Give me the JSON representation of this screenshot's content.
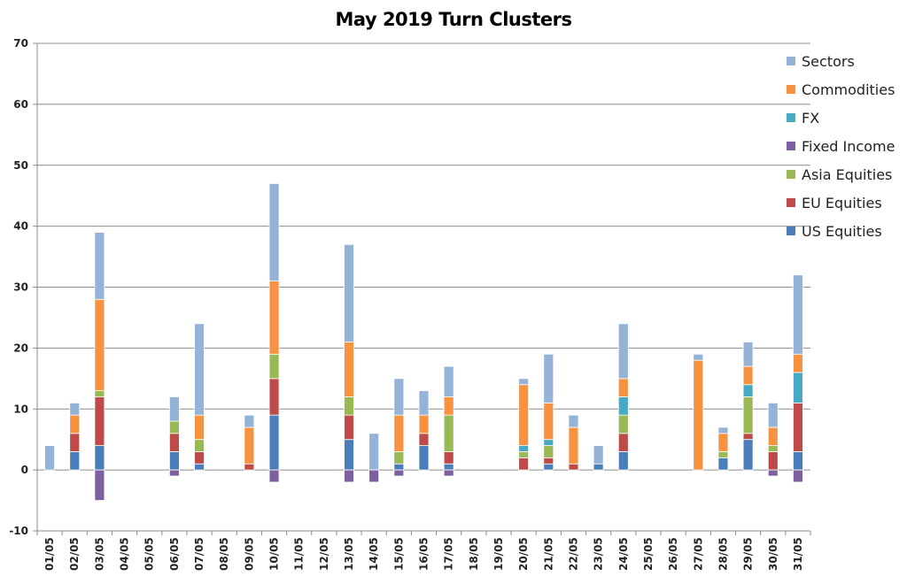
{
  "chart_data": {
    "type": "bar",
    "stacked": true,
    "title": "May 2019 Turn Clusters",
    "xlabel": "",
    "ylabel": "",
    "ylim": [
      -10,
      70
    ],
    "yticks": [
      -10,
      0,
      10,
      20,
      30,
      40,
      50,
      60,
      70
    ],
    "grid": true,
    "legend_position": "right",
    "categories": [
      "01/05",
      "02/05",
      "03/05",
      "04/05",
      "05/05",
      "06/05",
      "07/05",
      "08/05",
      "09/05",
      "10/05",
      "11/05",
      "12/05",
      "13/05",
      "14/05",
      "15/05",
      "16/05",
      "17/05",
      "18/05",
      "19/05",
      "20/05",
      "21/05",
      "22/05",
      "23/05",
      "24/05",
      "25/05",
      "26/05",
      "27/05",
      "28/05",
      "29/05",
      "30/05",
      "31/05"
    ],
    "series": [
      {
        "name": "US Equities",
        "color": "#4A7EBB",
        "values": [
          0,
          3,
          4,
          0,
          0,
          3,
          1,
          0,
          0,
          9,
          0,
          0,
          5,
          0,
          1,
          4,
          1,
          0,
          0,
          0,
          1,
          0,
          1,
          3,
          0,
          0,
          0,
          2,
          5,
          0,
          3
        ]
      },
      {
        "name": "EU Equities",
        "color": "#BE4B48",
        "values": [
          0,
          3,
          8,
          0,
          0,
          3,
          2,
          0,
          1,
          6,
          0,
          0,
          4,
          0,
          0,
          2,
          2,
          0,
          0,
          2,
          1,
          1,
          0,
          3,
          0,
          0,
          0,
          0,
          1,
          3,
          8
        ]
      },
      {
        "name": "Asia Equities",
        "color": "#98B954",
        "values": [
          0,
          0,
          1,
          0,
          0,
          2,
          2,
          0,
          0,
          4,
          0,
          0,
          3,
          0,
          2,
          0,
          6,
          0,
          0,
          1,
          2,
          0,
          0,
          3,
          0,
          0,
          0,
          1,
          6,
          1,
          0
        ]
      },
      {
        "name": "Fixed Income",
        "color": "#7D60A0",
        "values": [
          0,
          0,
          -5,
          0,
          0,
          -1,
          0,
          0,
          0,
          -2,
          0,
          0,
          -2,
          -2,
          -1,
          0,
          -1,
          0,
          0,
          0,
          0,
          0,
          0,
          0,
          0,
          0,
          0,
          0,
          0,
          -1,
          -2
        ]
      },
      {
        "name": "FX",
        "color": "#46AAC5",
        "values": [
          0,
          0,
          0,
          0,
          0,
          0,
          0,
          0,
          0,
          0,
          0,
          0,
          0,
          0,
          0,
          0,
          0,
          0,
          0,
          1,
          1,
          0,
          0,
          3,
          0,
          0,
          0,
          0,
          2,
          0,
          5
        ]
      },
      {
        "name": "Commodities",
        "color": "#F69240",
        "values": [
          0,
          3,
          15,
          0,
          0,
          0,
          4,
          0,
          6,
          12,
          0,
          0,
          9,
          0,
          6,
          3,
          3,
          0,
          0,
          10,
          6,
          6,
          0,
          3,
          0,
          0,
          18,
          3,
          3,
          3,
          3
        ]
      },
      {
        "name": "Sectors",
        "color": "#95B3D7",
        "values": [
          4,
          2,
          11,
          0,
          0,
          4,
          15,
          0,
          2,
          16,
          0,
          0,
          16,
          6,
          6,
          4,
          5,
          0,
          0,
          1,
          8,
          2,
          3,
          9,
          0,
          0,
          1,
          1,
          4,
          4,
          13
        ]
      }
    ]
  },
  "legend": {
    "items": [
      {
        "label": "Sectors",
        "color": "#95B3D7"
      },
      {
        "label": "Commodities",
        "color": "#F69240"
      },
      {
        "label": "FX",
        "color": "#46AAC5"
      },
      {
        "label": "Fixed Income",
        "color": "#7D60A0"
      },
      {
        "label": "Asia Equities",
        "color": "#98B954"
      },
      {
        "label": "EU Equities",
        "color": "#BE4B48"
      },
      {
        "label": "US Equities",
        "color": "#4A7EBB"
      }
    ]
  }
}
